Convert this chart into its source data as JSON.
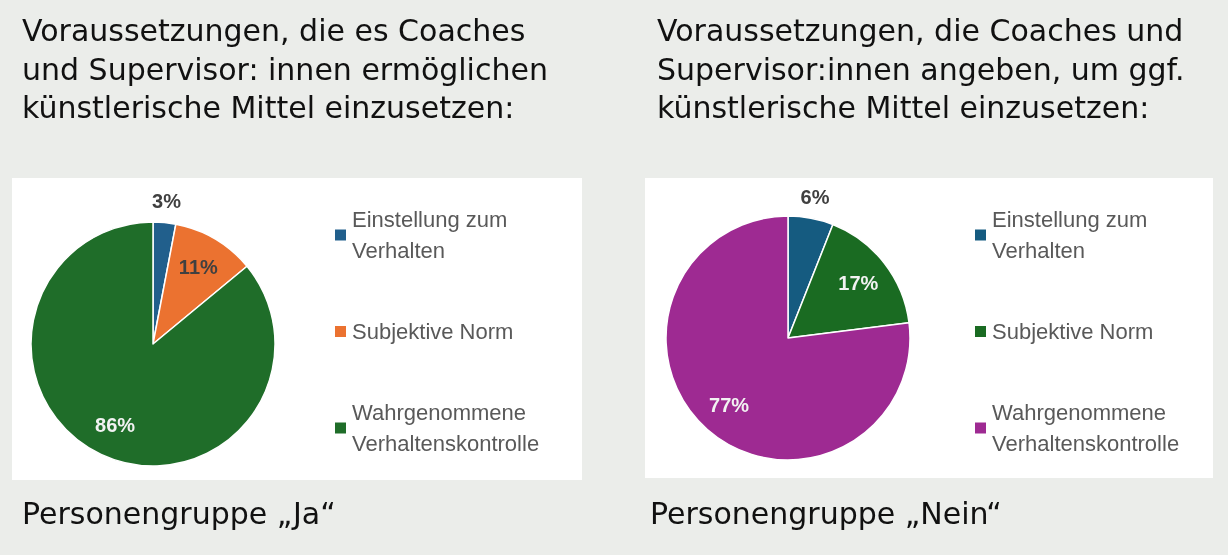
{
  "chart_data": [
    {
      "type": "pie",
      "title": "Voraussetzungen, die es Coaches und Supervisor: innen ermöglichen künstlerische Mittel einzusetzen:",
      "categories": [
        "Einstellung zum Verhalten",
        "Subjektive Norm",
        "Wahrgenommene Verhaltenskontrolle"
      ],
      "values": [
        3,
        11,
        86
      ],
      "colors": [
        "#215f8c",
        "#eb7230",
        "#1f6d29"
      ],
      "value_labels": [
        "3%",
        "11%",
        "86%"
      ],
      "legend": "right",
      "annotations": [
        "Personengruppe „Ja“"
      ]
    },
    {
      "type": "pie",
      "title": "Voraussetzungen, die Coaches und Supervisor:innen angeben, um ggf. künstlerische Mittel einzusetzen:",
      "categories": [
        "Einstellung zum Verhalten",
        "Subjektive Norm",
        "Wahrgenommene Verhaltenskontrolle"
      ],
      "values": [
        6,
        17,
        77
      ],
      "colors": [
        "#155b80",
        "#1a6b22",
        "#9e2a92"
      ],
      "value_labels": [
        "6%",
        "17%",
        "77%"
      ],
      "legend": "right",
      "annotations": [
        "Personengruppe „Nein“"
      ]
    }
  ]
}
